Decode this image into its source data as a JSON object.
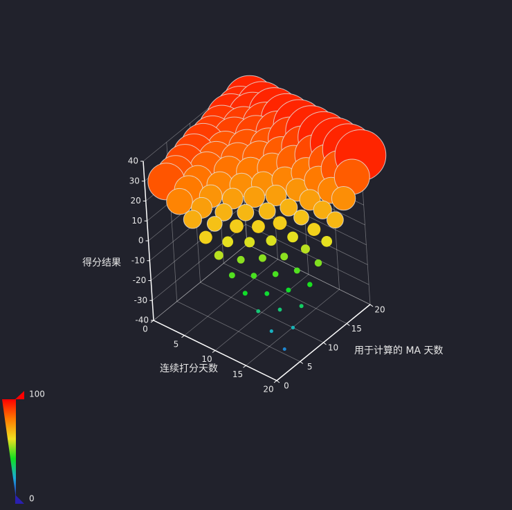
{
  "chart_data": {
    "type": "scatter3D",
    "x_label": "连续打分天数",
    "y_label": "用于计算的 MA 天数",
    "z_label": "得分结果",
    "xlim": [
      0,
      20
    ],
    "ylim": [
      0,
      20
    ],
    "zlim": [
      -40,
      40
    ],
    "xticks": [
      0,
      5,
      10,
      15,
      20
    ],
    "yticks": [
      0,
      5,
      10,
      15,
      20
    ],
    "zticks": [
      -40,
      -30,
      -20,
      -10,
      0,
      10,
      20,
      30,
      40
    ],
    "grid": true,
    "visual_map": {
      "min": 0,
      "max": 100,
      "colors": [
        "#2a1fb0",
        "#1aa8dc",
        "#10e020",
        "#f0e020",
        "#ff7a00",
        "#ff0000"
      ]
    },
    "series": [
      {
        "data": [
          [
            2,
            2,
            29,
            86
          ],
          [
            2,
            4,
            29,
            86
          ],
          [
            2,
            6,
            30,
            88
          ],
          [
            2,
            8,
            31,
            89
          ],
          [
            2,
            10,
            32,
            90
          ],
          [
            2,
            12,
            32,
            90
          ],
          [
            2,
            14,
            33,
            91
          ],
          [
            2,
            16,
            34,
            93
          ],
          [
            2,
            18,
            34,
            93
          ],
          [
            2,
            20,
            35,
            94
          ],
          [
            4,
            2,
            22,
            78
          ],
          [
            4,
            4,
            24,
            80
          ],
          [
            4,
            6,
            25,
            81
          ],
          [
            4,
            8,
            27,
            84
          ],
          [
            4,
            10,
            28,
            85
          ],
          [
            4,
            12,
            29,
            86
          ],
          [
            4,
            14,
            31,
            89
          ],
          [
            4,
            16,
            32,
            90
          ],
          [
            4,
            18,
            34,
            93
          ],
          [
            4,
            20,
            35,
            94
          ],
          [
            6,
            2,
            16,
            70
          ],
          [
            6,
            4,
            18,
            73
          ],
          [
            6,
            6,
            20,
            75
          ],
          [
            6,
            8,
            22,
            78
          ],
          [
            6,
            10,
            25,
            81
          ],
          [
            6,
            12,
            27,
            84
          ],
          [
            6,
            14,
            29,
            86
          ],
          [
            6,
            16,
            31,
            89
          ],
          [
            6,
            18,
            33,
            91
          ],
          [
            6,
            20,
            35,
            94
          ],
          [
            8,
            2,
            10,
            63
          ],
          [
            8,
            4,
            13,
            66
          ],
          [
            8,
            6,
            15,
            69
          ],
          [
            8,
            8,
            18,
            73
          ],
          [
            8,
            10,
            21,
            76
          ],
          [
            8,
            12,
            24,
            80
          ],
          [
            8,
            14,
            27,
            84
          ],
          [
            8,
            16,
            29,
            86
          ],
          [
            8,
            18,
            32,
            90
          ],
          [
            8,
            20,
            35,
            94
          ],
          [
            10,
            2,
            4,
            55
          ],
          [
            10,
            4,
            7,
            59
          ],
          [
            10,
            6,
            11,
            64
          ],
          [
            10,
            8,
            14,
            68
          ],
          [
            10,
            10,
            18,
            73
          ],
          [
            10,
            12,
            21,
            76
          ],
          [
            10,
            14,
            25,
            81
          ],
          [
            10,
            16,
            28,
            85
          ],
          [
            10,
            18,
            32,
            90
          ],
          [
            10,
            20,
            35,
            94
          ],
          [
            12,
            2,
            -3,
            46
          ],
          [
            12,
            4,
            1,
            51
          ],
          [
            12,
            6,
            6,
            58
          ],
          [
            12,
            8,
            10,
            63
          ],
          [
            12,
            10,
            14,
            68
          ],
          [
            12,
            12,
            18,
            73
          ],
          [
            12,
            14,
            22,
            78
          ],
          [
            12,
            16,
            27,
            84
          ],
          [
            12,
            18,
            31,
            89
          ],
          [
            12,
            20,
            35,
            94
          ],
          [
            14,
            2,
            -9,
            39
          ],
          [
            14,
            4,
            -4,
            45
          ],
          [
            14,
            6,
            1,
            51
          ],
          [
            14,
            8,
            6,
            58
          ],
          [
            14,
            10,
            11,
            64
          ],
          [
            14,
            12,
            15,
            69
          ],
          [
            14,
            14,
            20,
            75
          ],
          [
            14,
            16,
            25,
            81
          ],
          [
            14,
            18,
            30,
            88
          ],
          [
            14,
            20,
            35,
            94
          ],
          [
            16,
            2,
            -15,
            31
          ],
          [
            16,
            4,
            -10,
            38
          ],
          [
            16,
            6,
            -4,
            45
          ],
          [
            16,
            8,
            1,
            51
          ],
          [
            16,
            10,
            7,
            59
          ],
          [
            16,
            12,
            13,
            66
          ],
          [
            16,
            14,
            18,
            73
          ],
          [
            16,
            16,
            24,
            80
          ],
          [
            16,
            18,
            29,
            86
          ],
          [
            16,
            20,
            35,
            94
          ],
          [
            18,
            2,
            -22,
            23
          ],
          [
            18,
            4,
            -15,
            31
          ],
          [
            18,
            6,
            -9,
            39
          ],
          [
            18,
            8,
            -3,
            46
          ],
          [
            18,
            10,
            4,
            55
          ],
          [
            18,
            12,
            10,
            63
          ],
          [
            18,
            14,
            16,
            70
          ],
          [
            18,
            16,
            22,
            78
          ],
          [
            18,
            18,
            29,
            86
          ],
          [
            18,
            20,
            35,
            94
          ],
          [
            20,
            2,
            -28,
            15
          ],
          [
            20,
            4,
            -21,
            24
          ],
          [
            20,
            6,
            -14,
            33
          ],
          [
            20,
            8,
            -7,
            41
          ],
          [
            20,
            10,
            0,
            50
          ],
          [
            20,
            12,
            7,
            59
          ],
          [
            20,
            14,
            14,
            68
          ],
          [
            20,
            16,
            21,
            76
          ],
          [
            20,
            18,
            28,
            85
          ],
          [
            20,
            20,
            35,
            94
          ]
        ]
      }
    ]
  }
}
